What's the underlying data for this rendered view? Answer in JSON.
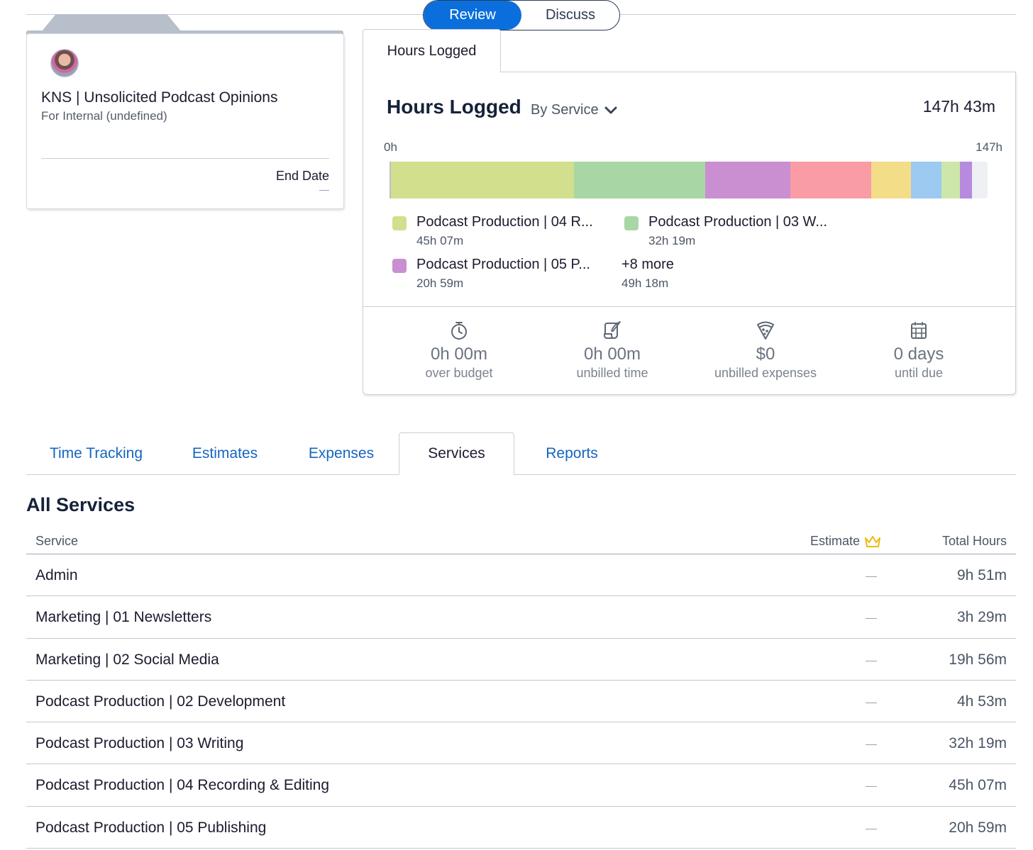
{
  "view_toggle": {
    "review": "Review",
    "discuss": "Discuss"
  },
  "project": {
    "title": "KNS | Unsolicited Podcast Opinions",
    "subtitle": "For Internal (undefined)",
    "end_date_label": "End Date"
  },
  "hours": {
    "tab_label": "Hours Logged",
    "title": "Hours Logged",
    "group_by": "By Service",
    "total": "147h 43m",
    "axis_min": "0h",
    "axis_max": "147h",
    "legend": [
      {
        "name": "Podcast Production | 04 R...",
        "value": "45h 07m",
        "color": "#d2df8c"
      },
      {
        "name": "Podcast Production | 03 W...",
        "value": "32h 19m",
        "color": "#a8d7a5"
      },
      {
        "name": "Podcast Production | 05 P...",
        "value": "20h 59m",
        "color": "#c98fd0"
      },
      {
        "name": "+8 more",
        "value": "49h 18m"
      }
    ]
  },
  "chart_data": {
    "type": "bar",
    "stacked": true,
    "orientation": "horizontal",
    "xlim": [
      0,
      147
    ],
    "segments": [
      {
        "value": 45.12,
        "color": "#d2df8c"
      },
      {
        "value": 32.32,
        "color": "#a8d7a5"
      },
      {
        "value": 20.98,
        "color": "#c98fd0"
      },
      {
        "value": 19.93,
        "color": "#f99ca6"
      },
      {
        "value": 9.85,
        "color": "#f4dd89"
      },
      {
        "value": 7.5,
        "color": "#9ccaf0"
      },
      {
        "value": 4.4,
        "color": "#cde6a9"
      },
      {
        "value": 3.0,
        "color": "#b78ae0"
      }
    ]
  },
  "stats": [
    {
      "value": "0h 00m",
      "label": "over budget",
      "icon": "stopwatch-icon"
    },
    {
      "value": "0h 00m",
      "label": "unbilled time",
      "icon": "scroll-quill-icon"
    },
    {
      "value": "$0",
      "label": "unbilled expenses",
      "icon": "pizza-slice-icon"
    },
    {
      "value": "0 days",
      "label": "until due",
      "icon": "calendar-icon"
    }
  ],
  "tabs": [
    "Time Tracking",
    "Estimates",
    "Expenses",
    "Services",
    "Reports"
  ],
  "services": {
    "title": "All Services",
    "columns": {
      "service": "Service",
      "estimate": "Estimate",
      "total": "Total Hours"
    },
    "rows": [
      {
        "name": "Admin",
        "total": "9h 51m"
      },
      {
        "name": "Marketing | 01 Newsletters",
        "total": "3h 29m"
      },
      {
        "name": "Marketing | 02 Social Media",
        "total": "19h 56m"
      },
      {
        "name": "Podcast Production | 02 Development",
        "total": "4h 53m"
      },
      {
        "name": "Podcast Production | 03 Writing",
        "total": "32h 19m"
      },
      {
        "name": "Podcast Production | 04 Recording & Editing",
        "total": "45h 07m"
      },
      {
        "name": "Podcast Production | 05 Publishing",
        "total": "20h 59m"
      }
    ]
  }
}
